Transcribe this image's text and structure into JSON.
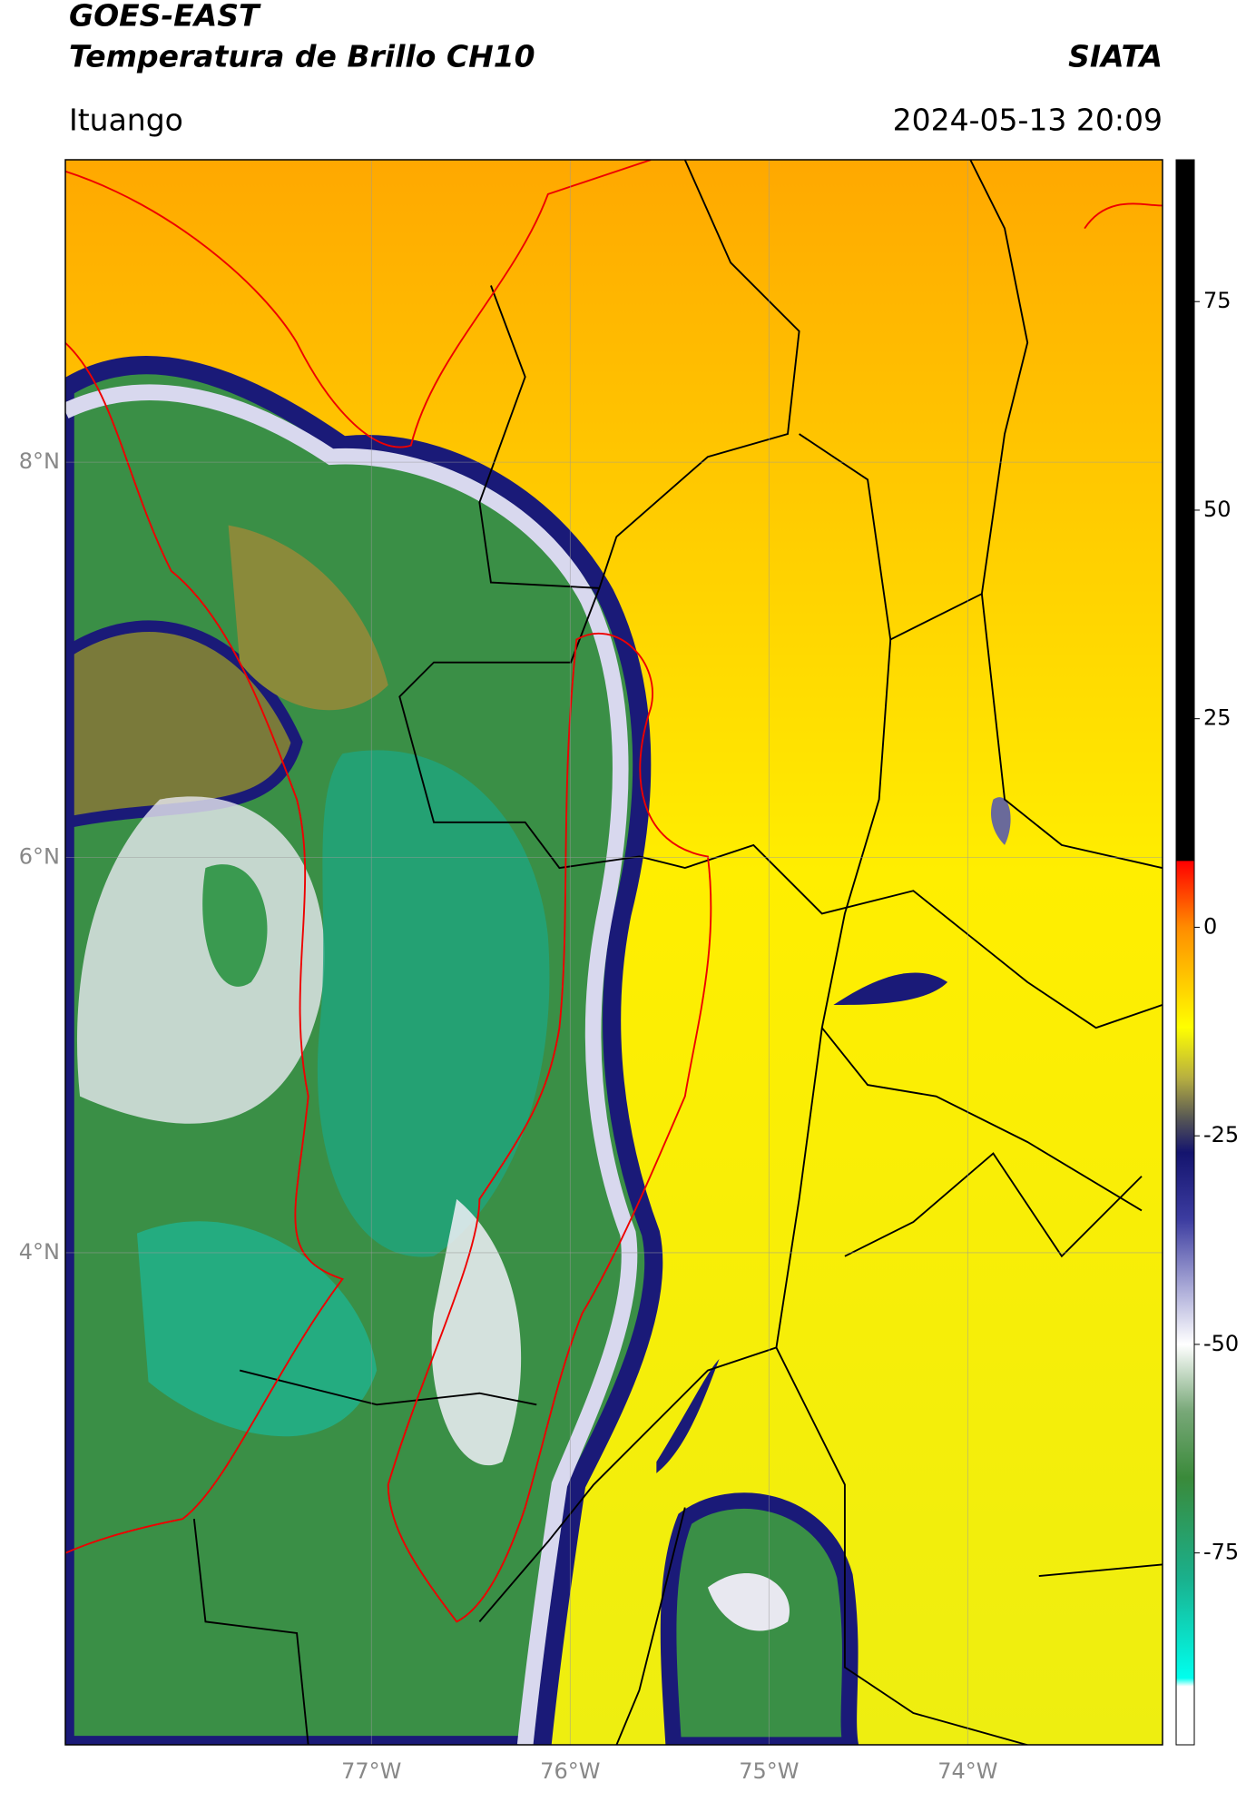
{
  "chart_data": {
    "type": "map",
    "title": "GOES-EAST",
    "subtitle": "Temperatura de Brillo CH10",
    "source": "SIATA",
    "region": "Ituango",
    "datetime": "2024-05-13 20:09",
    "xlim": [
      -78.54,
      -73.02
    ],
    "ylim": [
      1.51,
      9.53
    ],
    "xticks": [
      {
        "value": -77,
        "label": "77°W"
      },
      {
        "value": -76,
        "label": "76°W"
      },
      {
        "value": -75,
        "label": "75°W"
      },
      {
        "value": -74,
        "label": "74°W"
      }
    ],
    "yticks": [
      {
        "value": 8,
        "label": "8°N"
      },
      {
        "value": 6,
        "label": "6°N"
      },
      {
        "value": 4,
        "label": "4°N"
      }
    ],
    "grid": true,
    "colorbar": {
      "lim": [
        -98,
        92
      ],
      "ticks": [
        75,
        50,
        25,
        0,
        -25,
        -50,
        -75
      ],
      "colorscale": [
        [
          92,
          "#000000"
        ],
        [
          8,
          "#000000"
        ],
        [
          7.9,
          "#ff0000"
        ],
        [
          0,
          "#ff8c00"
        ],
        [
          -12,
          "#ffff00"
        ],
        [
          -18,
          "#b8b040"
        ],
        [
          -23,
          "#555555"
        ],
        [
          -27,
          "#14146e"
        ],
        [
          -35,
          "#3c3ca0"
        ],
        [
          -44,
          "#b4b4dc"
        ],
        [
          -50,
          "#ffffff"
        ],
        [
          -58,
          "#78a878"
        ],
        [
          -66,
          "#3a8a3a"
        ],
        [
          -78,
          "#1ab08c"
        ],
        [
          -90,
          "#00ffee"
        ],
        [
          -91,
          "#ffffff"
        ],
        [
          -98,
          "#ffffff"
        ]
      ]
    }
  }
}
